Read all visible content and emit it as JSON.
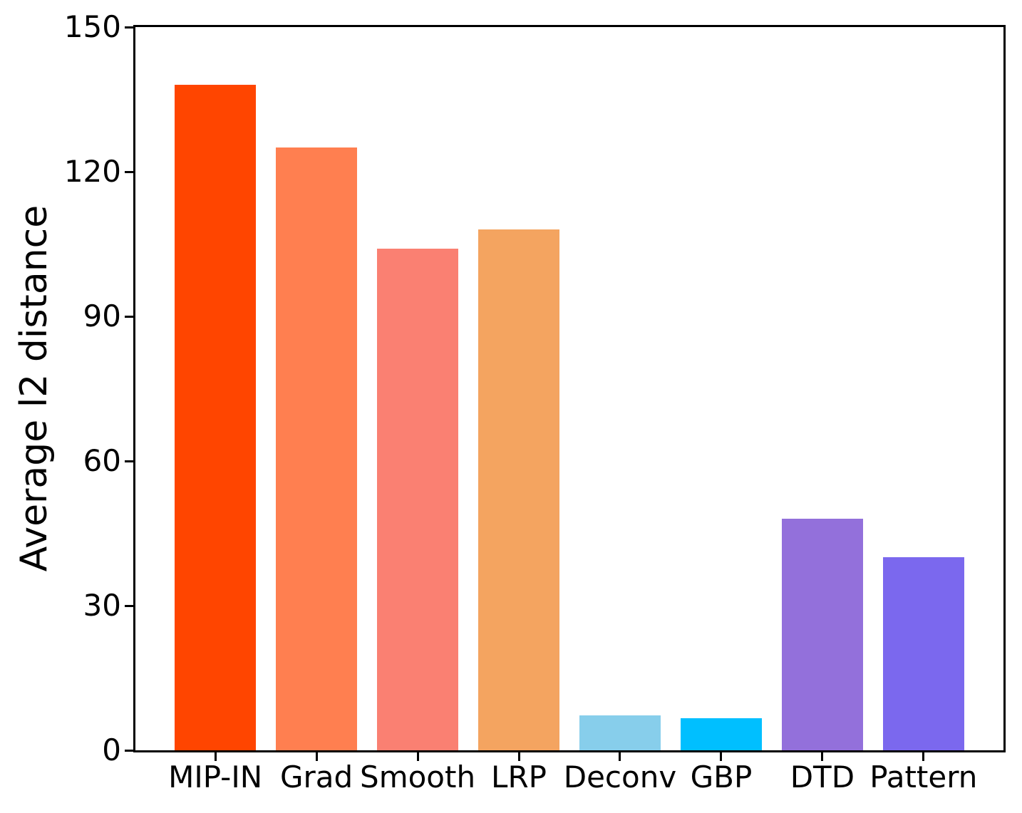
{
  "chart_data": {
    "type": "bar",
    "title": "",
    "xlabel": "",
    "ylabel": "Average l2 distance",
    "categories": [
      "MIP-IN",
      "Grad",
      "Smooth",
      "LRP",
      "Deconv",
      "GBP",
      "DTD",
      "Pattern"
    ],
    "values": [
      138,
      125,
      104,
      108,
      7.2,
      6.6,
      48,
      40
    ],
    "bar_colors": [
      "#FF4500",
      "#FF7F50",
      "#FA8072",
      "#F4A460",
      "#87CEEB",
      "#00BFFF",
      "#9370DB",
      "#7B68EE"
    ],
    "ylim": [
      0,
      150
    ],
    "yticks": [
      0,
      30,
      60,
      90,
      120,
      150
    ],
    "bar_width_fraction": 0.8,
    "x_margin_fraction": 0.05,
    "grid": false,
    "legend_position": "none",
    "axis_color": "#000000",
    "background_color": "#FFFFFF"
  }
}
